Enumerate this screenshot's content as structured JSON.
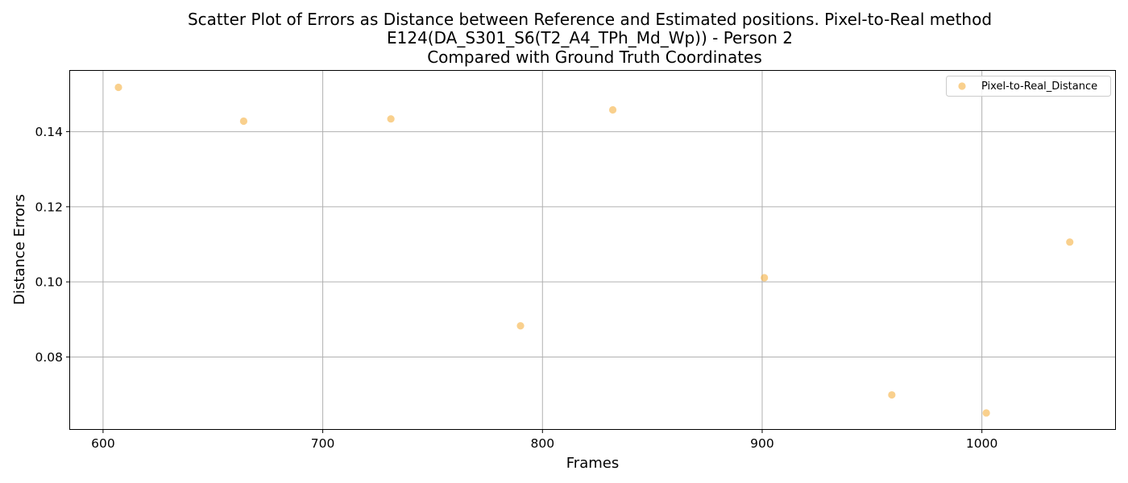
{
  "chart_data": {
    "type": "scatter",
    "title_lines": [
      "Scatter Plot of Errors as Distance between Reference and Estimated positions. Pixel-to-Real method",
      "E124(DA_S301_S6(T2_A4_TPh_Md_Wp)) - Person 2",
      "Compared with Ground Truth Coordinates"
    ],
    "xlabel": "Frames",
    "ylabel": "Distance Errors",
    "xlim": [
      585,
      1061
    ],
    "ylim": [
      0.0608,
      0.1562
    ],
    "xticks": [
      600,
      700,
      800,
      900,
      1000
    ],
    "yticks": [
      0.08,
      0.1,
      0.12,
      0.14
    ],
    "xtick_labels": [
      "600",
      "700",
      "800",
      "900",
      "1000"
    ],
    "ytick_labels": [
      "0.08",
      "0.10",
      "0.12",
      "0.14"
    ],
    "grid": true,
    "legend_position": "top-right",
    "series": [
      {
        "name": "Pixel-to-Real_Distance",
        "color": "#f5b041",
        "x": [
          607,
          664,
          731,
          790,
          832,
          901,
          959,
          1002,
          1040
        ],
        "y": [
          0.1518,
          0.1428,
          0.1434,
          0.0883,
          0.1458,
          0.1011,
          0.0699,
          0.0651,
          0.1106
        ]
      }
    ]
  }
}
